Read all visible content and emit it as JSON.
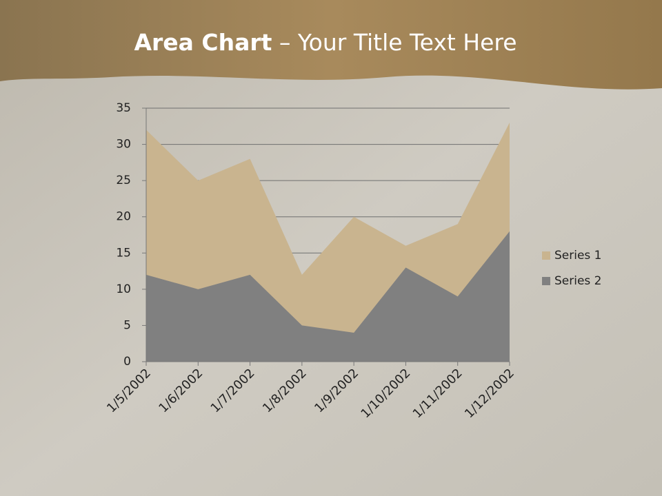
{
  "chart_data": {
    "type": "area",
    "title": [
      "Area Chart",
      "– Your Title Text Here"
    ],
    "categories": [
      "1/5/2002",
      "1/6/2002",
      "1/7/2002",
      "1/8/2002",
      "1/9/2002",
      "1/10/2002",
      "1/11/2002",
      "1/12/2002"
    ],
    "series": [
      {
        "name": "Series 1",
        "color": "#c9b48f",
        "values": [
          32,
          25,
          28,
          12,
          20,
          16,
          19,
          33
        ]
      },
      {
        "name": "Series 2",
        "color": "#808080",
        "values": [
          12,
          10,
          12,
          5,
          4,
          13,
          9,
          18
        ]
      }
    ],
    "ylim": [
      0,
      35
    ],
    "yticks": [
      0,
      5,
      10,
      15,
      20,
      25,
      30,
      35
    ],
    "grid": true,
    "legend": "right"
  }
}
